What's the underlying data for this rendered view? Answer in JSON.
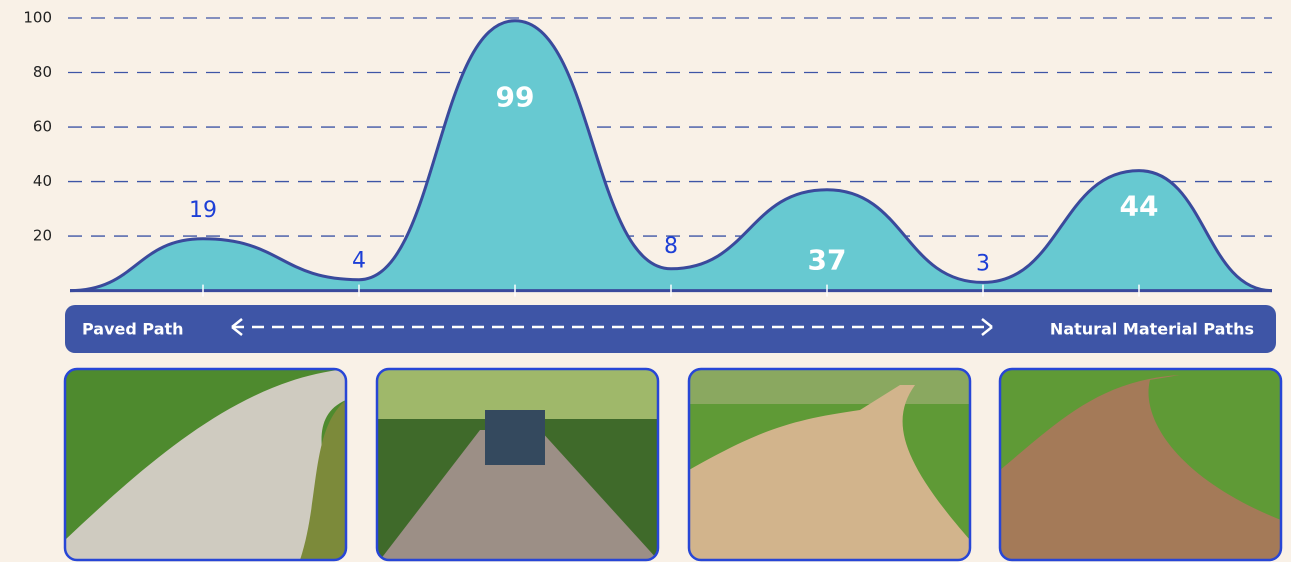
{
  "chart_data": {
    "type": "area",
    "categories": [
      null,
      null,
      null,
      null,
      null,
      null,
      null
    ],
    "values": [
      19,
      4,
      99,
      8,
      37,
      3,
      44
    ],
    "color": "#67c9d1",
    "line_color": "#3a4a9c",
    "ylim": [
      0,
      100
    ],
    "yticks": [
      20,
      40,
      60,
      80,
      100
    ],
    "grid": true
  },
  "scale": {
    "left": "Paved Path",
    "right": "Natural Material Paths"
  }
}
